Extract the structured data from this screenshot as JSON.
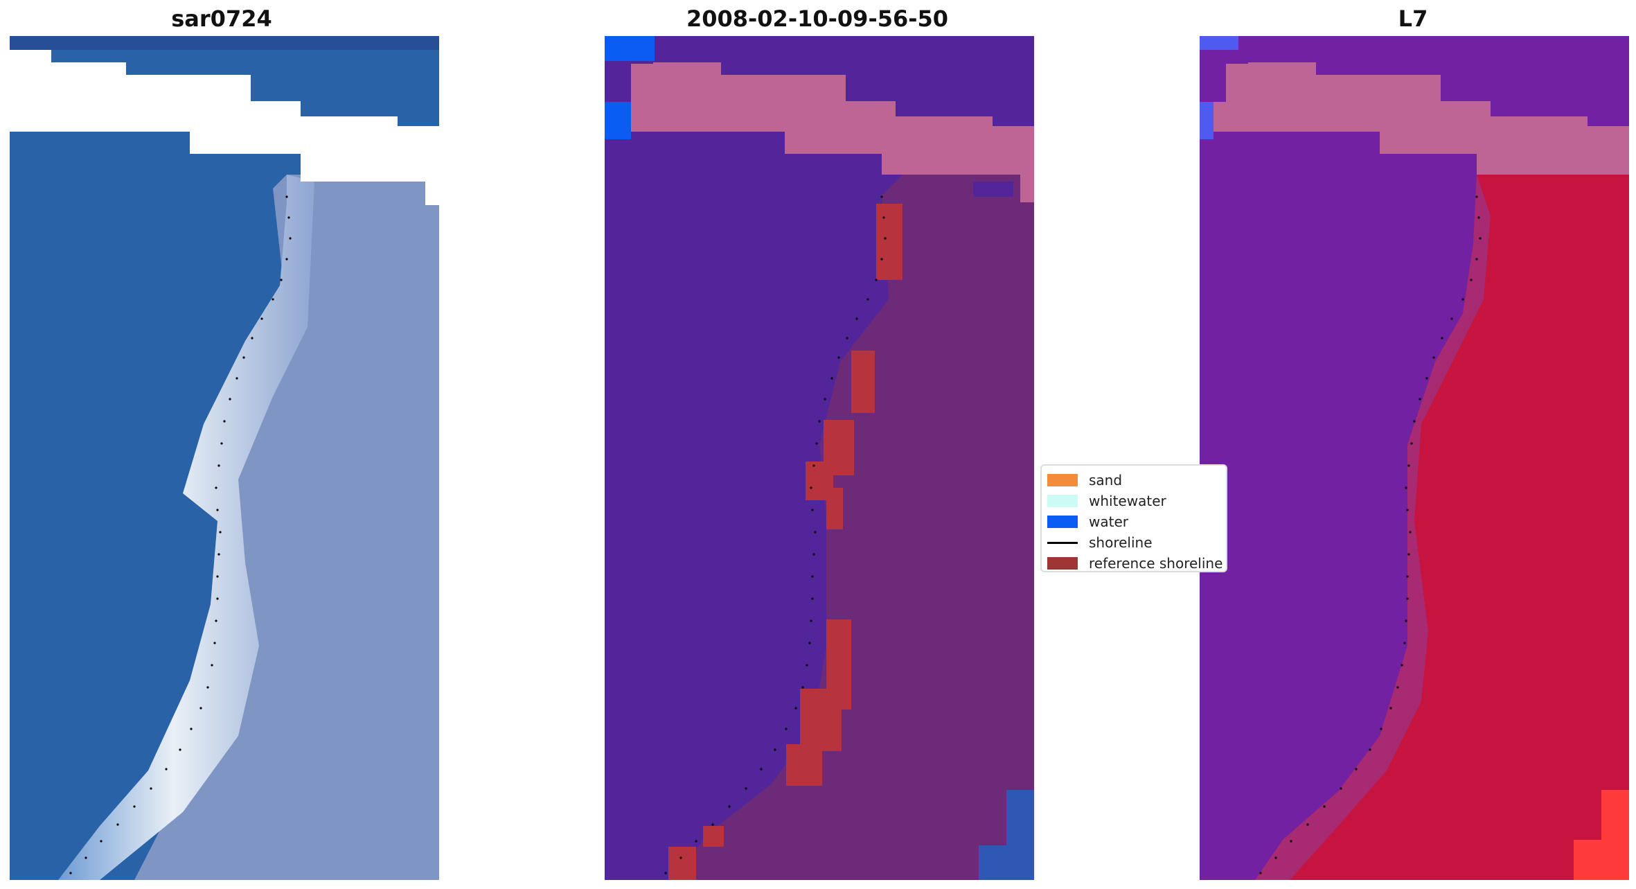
{
  "panels": [
    {
      "title": "sar0724"
    },
    {
      "title": "2008-02-10-09-56-50"
    },
    {
      "title": "L7"
    }
  ],
  "legend": {
    "items": [
      {
        "label": "sand",
        "color": "#f28c3a",
        "kind": "patch"
      },
      {
        "label": "whitewater",
        "color": "#ccfbf5",
        "kind": "patch"
      },
      {
        "label": "water",
        "color": "#0a5cf2",
        "kind": "patch"
      },
      {
        "label": "shoreline",
        "color": "#000000",
        "kind": "line"
      },
      {
        "label": "reference shoreline",
        "color": "#a03535",
        "kind": "patch"
      }
    ]
  },
  "colors": {
    "rgb_ocean": "#2a62a8",
    "rgb_beach": "#e9f0f6",
    "rgb_land": "#7f96c4",
    "class_water_overlay": "#52259a",
    "class_land_overlay": "#6d2a79",
    "class_cloud": "#bd6695",
    "class_reference": "#b7343f",
    "class_water_patch": "#0a5cf2",
    "index_water": "#7221a3",
    "index_land": "#c5143f",
    "index_cloud": "#bd6695",
    "index_bright": "#ff3a3a",
    "index_blue": "#4f5bf0"
  }
}
